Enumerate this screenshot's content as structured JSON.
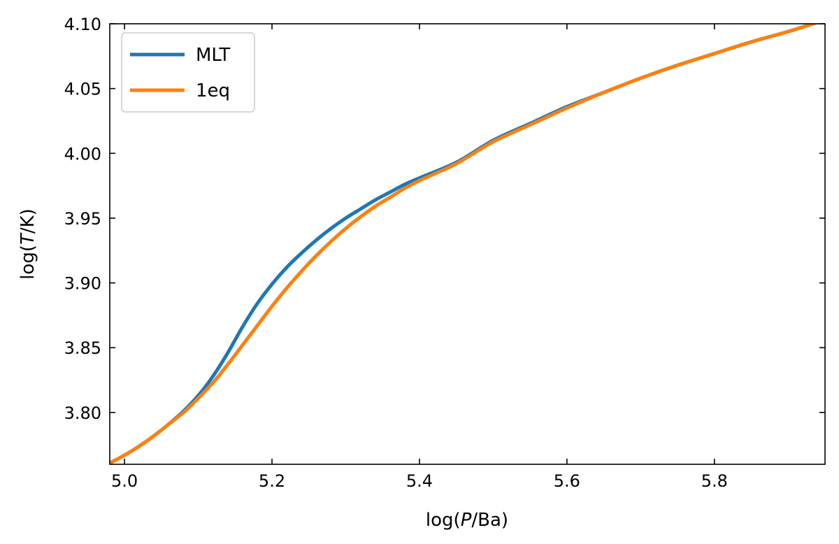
{
  "chart_data": {
    "type": "line",
    "title": "",
    "xlabel_parts": {
      "pre": "log(",
      "var": "P",
      "post": "/Ba)"
    },
    "ylabel_parts": {
      "pre": "log(",
      "var": "T",
      "post": "/K)"
    },
    "xlim": [
      4.98,
      5.95
    ],
    "ylim": [
      3.76,
      4.1
    ],
    "xticks": [
      5.0,
      5.2,
      5.4,
      5.6,
      5.8
    ],
    "xtick_labels": [
      "5.0",
      "5.2",
      "5.4",
      "5.6",
      "5.8"
    ],
    "yticks": [
      3.8,
      3.85,
      3.9,
      3.95,
      4.0,
      4.05,
      4.1
    ],
    "ytick_labels": [
      "3.80",
      "3.85",
      "3.90",
      "3.95",
      "4.00",
      "4.05",
      "4.10"
    ],
    "grid": false,
    "legend_position": "top-left",
    "series": [
      {
        "name": "MLT",
        "color": "#1f77b4",
        "x": [
          4.98,
          5.0,
          5.02,
          5.04,
          5.06,
          5.08,
          5.1,
          5.12,
          5.14,
          5.16,
          5.18,
          5.2,
          5.22,
          5.24,
          5.26,
          5.28,
          5.3,
          5.32,
          5.34,
          5.36,
          5.38,
          5.4,
          5.45,
          5.5,
          5.55,
          5.6,
          5.65,
          5.7,
          5.75,
          5.8,
          5.85,
          5.9,
          5.95
        ],
        "y": [
          3.761,
          3.767,
          3.774,
          3.782,
          3.791,
          3.801,
          3.813,
          3.828,
          3.846,
          3.866,
          3.884,
          3.899,
          3.912,
          3.923,
          3.933,
          3.942,
          3.95,
          3.957,
          3.964,
          3.97,
          3.976,
          3.981,
          3.993,
          4.01,
          4.023,
          4.036,
          4.047,
          4.058,
          4.068,
          4.077,
          4.086,
          4.094,
          4.103
        ]
      },
      {
        "name": "1eq",
        "color": "#ff7f0e",
        "x": [
          4.98,
          5.0,
          5.02,
          5.04,
          5.06,
          5.08,
          5.1,
          5.12,
          5.14,
          5.16,
          5.18,
          5.2,
          5.22,
          5.24,
          5.26,
          5.28,
          5.3,
          5.32,
          5.34,
          5.36,
          5.38,
          5.4,
          5.45,
          5.5,
          5.55,
          5.6,
          5.65,
          5.7,
          5.75,
          5.8,
          5.85,
          5.9,
          5.95
        ],
        "y": [
          3.761,
          3.767,
          3.774,
          3.782,
          3.791,
          3.8,
          3.811,
          3.823,
          3.837,
          3.852,
          3.867,
          3.882,
          3.896,
          3.909,
          3.921,
          3.932,
          3.942,
          3.951,
          3.959,
          3.966,
          3.973,
          3.979,
          3.992,
          4.009,
          4.022,
          4.035,
          4.047,
          4.058,
          4.068,
          4.077,
          4.086,
          4.094,
          4.103
        ]
      }
    ]
  }
}
